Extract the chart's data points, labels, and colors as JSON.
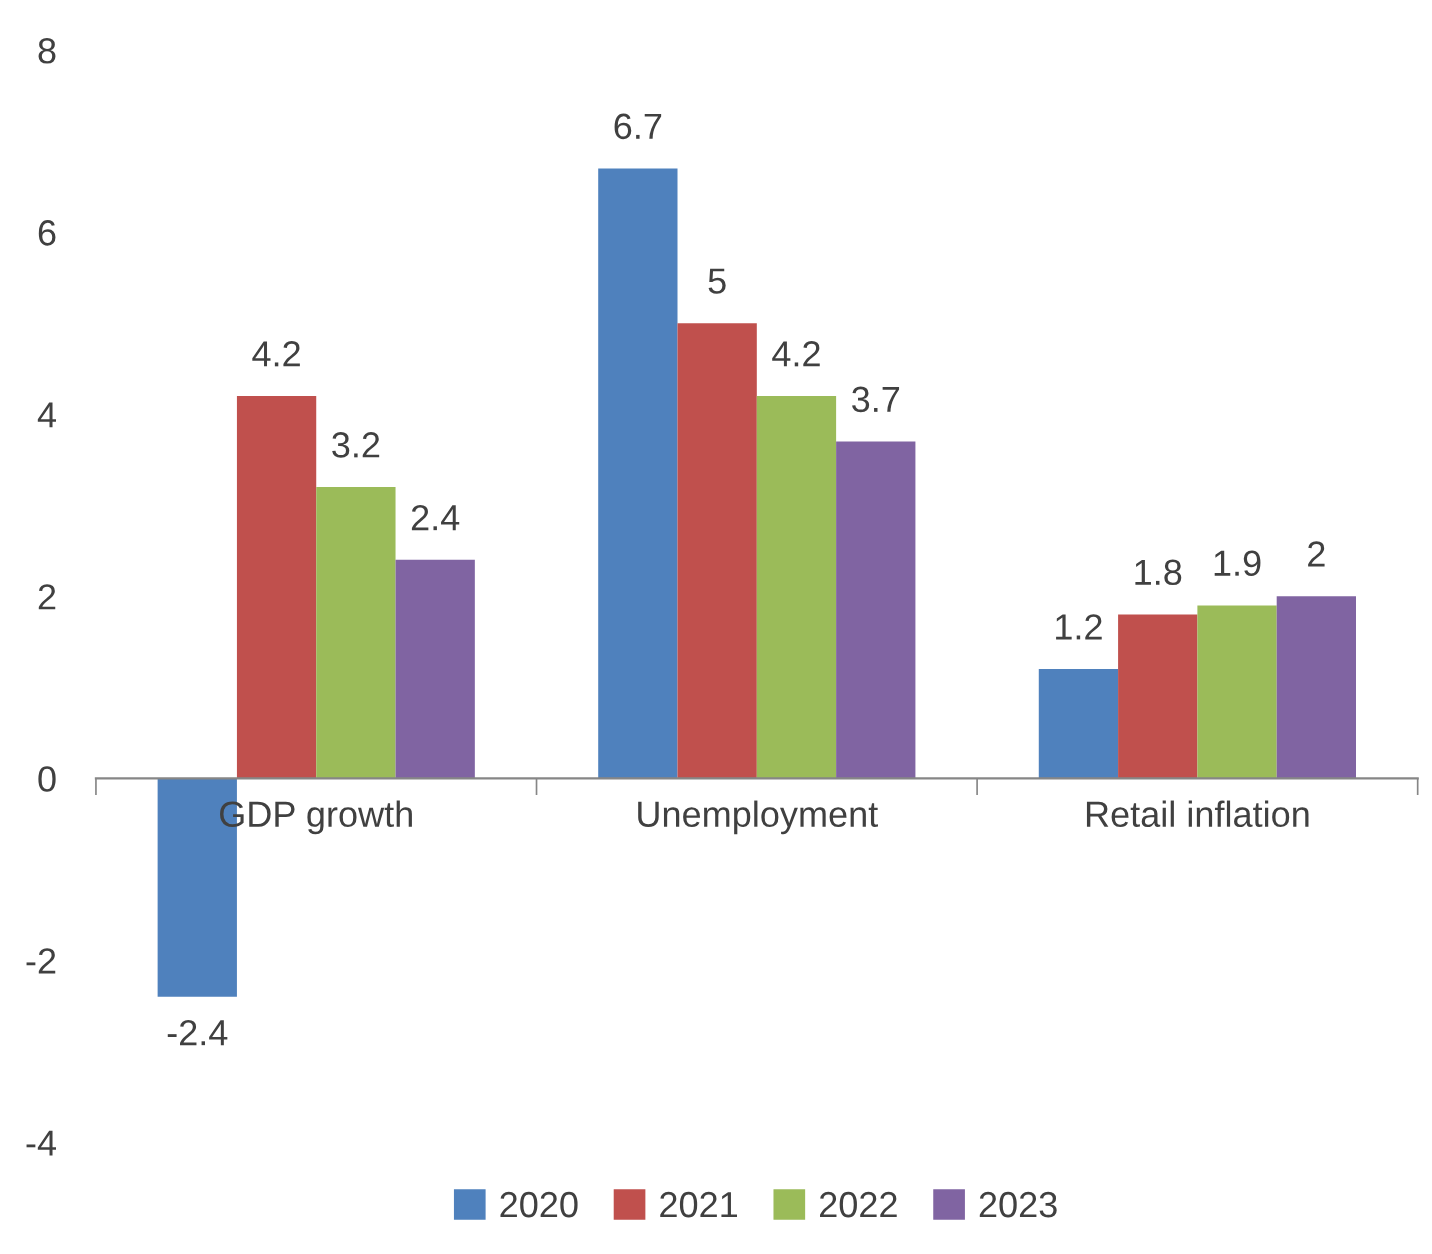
{
  "chart_data": {
    "type": "bar",
    "categories": [
      "GDP growth",
      "Unemployment",
      "Retail inflation"
    ],
    "series": [
      {
        "name": "2020",
        "color": "#4f81bd",
        "values": [
          -2.4,
          6.7,
          1.2
        ]
      },
      {
        "name": "2021",
        "color": "#c0504d",
        "values": [
          4.2,
          5,
          1.8
        ]
      },
      {
        "name": "2022",
        "color": "#9bbb59",
        "values": [
          3.2,
          4.2,
          1.9
        ]
      },
      {
        "name": "2023",
        "color": "#8064a2",
        "values": [
          2.4,
          3.7,
          2
        ]
      }
    ],
    "ylim": [
      -4,
      8
    ],
    "yticks": [
      -4,
      -2,
      0,
      2,
      4,
      6,
      8
    ],
    "data_labels": true,
    "legend": "bottom",
    "grid": false
  }
}
